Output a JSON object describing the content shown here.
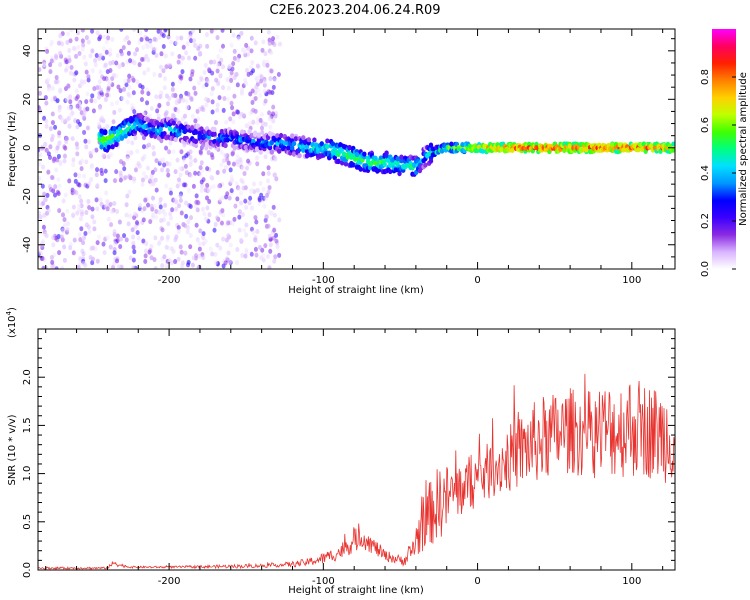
{
  "title": "C2E6.2023.204.06.24.R09",
  "chart_data": [
    {
      "type": "heatmap",
      "xlabel": "Height of straight line (km)",
      "ylabel": "Frequency (Hz)",
      "xlim": [
        -285,
        128
      ],
      "ylim": [
        -50,
        49
      ],
      "xticks": [
        -200,
        -100,
        0,
        100
      ],
      "yticks": [
        -40,
        -20,
        0,
        20,
        40
      ],
      "colorbar": {
        "label": "Normalized spectral amplitude",
        "range": [
          0,
          1
        ],
        "ticks": [
          "0.0",
          "0.2",
          "0.4",
          "0.6",
          "0.8"
        ],
        "colors": [
          "#ffffff",
          "#d8b4ff",
          "#8a2be2",
          "#3a00ff",
          "#0000ff",
          "#0096ff",
          "#00e0ff",
          "#00ff80",
          "#40ff00",
          "#c0ff00",
          "#ffd000",
          "#ff8000",
          "#ff2000",
          "#ff0060",
          "#ff00ff"
        ]
      },
      "main_track": {
        "x": [
          -240,
          -230,
          -220,
          -210,
          -200,
          -190,
          -180,
          -170,
          -160,
          -150,
          -140,
          -130,
          -120,
          -110,
          -100,
          -90,
          -80,
          -70,
          -60,
          -50,
          -40,
          -35,
          -30,
          -20,
          0,
          20,
          50,
          80,
          100,
          128
        ],
        "freq": [
          3,
          7,
          10,
          7,
          8,
          6,
          5,
          4,
          4,
          3,
          2,
          2,
          1,
          0,
          0,
          -2,
          -4,
          -6,
          -6,
          -7,
          -8,
          -4,
          -2,
          0,
          0,
          0,
          0,
          0,
          0,
          0
        ],
        "amplitude": [
          0.6,
          0.55,
          0.45,
          0.4,
          0.45,
          0.4,
          0.35,
          0.35,
          0.35,
          0.35,
          0.35,
          0.4,
          0.4,
          0.45,
          0.5,
          0.55,
          0.55,
          0.55,
          0.55,
          0.5,
          0.5,
          0.4,
          0.5,
          0.6,
          0.75,
          0.85,
          0.85,
          0.85,
          0.85,
          0.8
        ]
      }
    },
    {
      "type": "line",
      "xlabel": "Height of straight line (km)",
      "ylabel": "SNR (10 * v/v)",
      "y_multiplier": "(x10",
      "y_multiplier_exp": "4",
      "xlim": [
        -285,
        128
      ],
      "ylim": [
        0,
        2.5
      ],
      "xticks": [
        -200,
        -100,
        0,
        100
      ],
      "yticks": [
        "0.0",
        "0.5",
        "1.0",
        "1.5",
        "2.0"
      ],
      "color": "#e8332f",
      "x": [
        -285,
        -240,
        -235,
        -232,
        -225,
        -200,
        -150,
        -130,
        -120,
        -110,
        -100,
        -90,
        -80,
        -75,
        -70,
        -60,
        -50,
        -45,
        -40,
        -35,
        -30,
        -25,
        -20,
        -15,
        -10,
        0,
        10,
        20,
        30,
        40,
        50,
        60,
        70,
        80,
        90,
        100,
        110,
        120,
        128
      ],
      "y": [
        0.02,
        0.02,
        0.08,
        0.05,
        0.03,
        0.03,
        0.04,
        0.05,
        0.06,
        0.08,
        0.12,
        0.18,
        0.3,
        0.35,
        0.28,
        0.15,
        0.1,
        0.12,
        0.3,
        0.5,
        0.6,
        0.7,
        0.75,
        0.8,
        0.85,
        0.95,
        1.05,
        1.15,
        1.25,
        1.35,
        1.4,
        1.45,
        1.4,
        1.45,
        1.45,
        1.5,
        1.45,
        1.4,
        1.4
      ],
      "y_spread": [
        0.01,
        0.01,
        0.04,
        0.02,
        0.01,
        0.01,
        0.02,
        0.02,
        0.03,
        0.04,
        0.06,
        0.08,
        0.12,
        0.12,
        0.1,
        0.06,
        0.05,
        0.08,
        0.2,
        0.3,
        0.35,
        0.4,
        0.35,
        0.3,
        0.3,
        0.3,
        0.3,
        0.35,
        0.4,
        0.45,
        0.45,
        0.45,
        0.45,
        0.5,
        0.5,
        0.55,
        0.5,
        0.5,
        0.5
      ]
    }
  ]
}
